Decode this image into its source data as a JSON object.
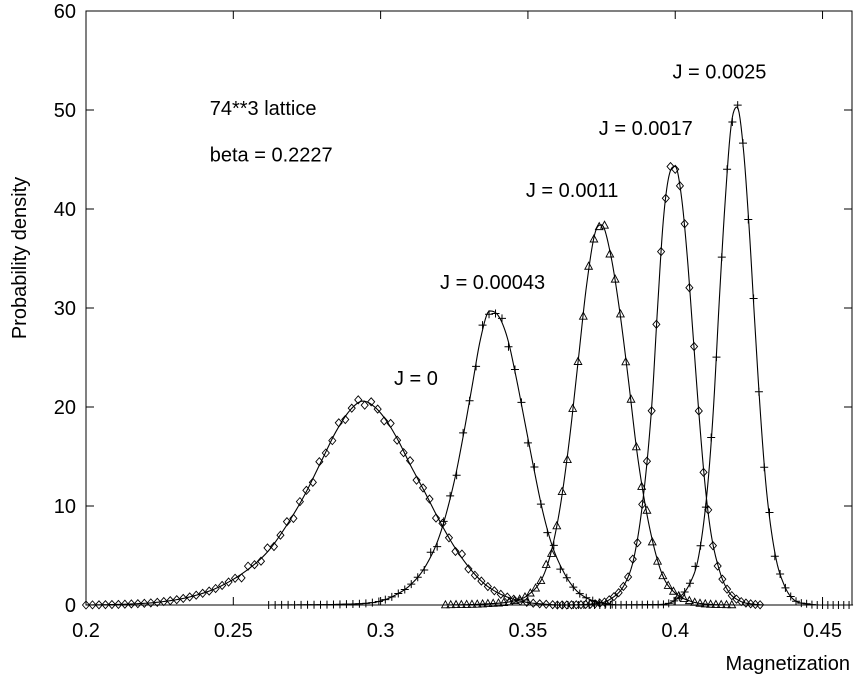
{
  "chart_data": {
    "type": "line",
    "xlabel": "Magnetization",
    "ylabel": "Probability density",
    "xlim": [
      0.2,
      0.46
    ],
    "ylim": [
      0,
      60
    ],
    "grid": false,
    "legend": "none",
    "x_ticks": [
      {
        "value": 0.2,
        "label": "0.2"
      },
      {
        "value": 0.25,
        "label": "0.25"
      },
      {
        "value": 0.3,
        "label": "0.3"
      },
      {
        "value": 0.35,
        "label": "0.35"
      },
      {
        "value": 0.4,
        "label": "0.4"
      },
      {
        "value": 0.45,
        "label": "0.45"
      }
    ],
    "y_ticks": [
      {
        "value": 0,
        "label": "0"
      },
      {
        "value": 10,
        "label": "10"
      },
      {
        "value": 20,
        "label": "20"
      },
      {
        "value": 30,
        "label": "30"
      },
      {
        "value": 40,
        "label": "40"
      },
      {
        "value": 50,
        "label": "50"
      },
      {
        "value": 60,
        "label": "60"
      }
    ],
    "annotations": [
      {
        "text": "74**3 lattice",
        "x": 0.242,
        "y": 49.5
      },
      {
        "text": "beta = 0.2227",
        "x": 0.242,
        "y": 44.8
      }
    ],
    "series": [
      {
        "label": "J = 0",
        "label_pos": [
          0.312,
          22.2
        ],
        "marker": "diamond",
        "xrange": [
          0.2,
          0.36
        ],
        "step": 0.0022,
        "points": [
          [
            0.2,
            0.0
          ],
          [
            0.215,
            0.1
          ],
          [
            0.225,
            0.3
          ],
          [
            0.235,
            0.8
          ],
          [
            0.245,
            1.8
          ],
          [
            0.255,
            3.6
          ],
          [
            0.262,
            5.5
          ],
          [
            0.268,
            8.0
          ],
          [
            0.274,
            11.0
          ],
          [
            0.28,
            14.6
          ],
          [
            0.285,
            17.6
          ],
          [
            0.29,
            19.8
          ],
          [
            0.294,
            20.6
          ],
          [
            0.298,
            20.0
          ],
          [
            0.302,
            18.6
          ],
          [
            0.306,
            16.6
          ],
          [
            0.31,
            14.2
          ],
          [
            0.315,
            11.4
          ],
          [
            0.32,
            8.5
          ],
          [
            0.325,
            5.9
          ],
          [
            0.33,
            3.8
          ],
          [
            0.335,
            2.2
          ],
          [
            0.34,
            1.2
          ],
          [
            0.345,
            0.6
          ],
          [
            0.35,
            0.25
          ],
          [
            0.355,
            0.1
          ],
          [
            0.36,
            0.0
          ]
        ]
      },
      {
        "label": "J = 0.00043",
        "label_pos": [
          0.338,
          31.9
        ],
        "marker": "plus",
        "xrange": [
          0.262,
          0.38
        ],
        "step": 0.0022,
        "points": [
          [
            0.262,
            0.0
          ],
          [
            0.29,
            0.1
          ],
          [
            0.3,
            0.4
          ],
          [
            0.305,
            1.0
          ],
          [
            0.31,
            2.0
          ],
          [
            0.315,
            3.8
          ],
          [
            0.32,
            7.0
          ],
          [
            0.325,
            12.5
          ],
          [
            0.328,
            17.0
          ],
          [
            0.331,
            22.0
          ],
          [
            0.334,
            27.0
          ],
          [
            0.337,
            29.7
          ],
          [
            0.34,
            29.2
          ],
          [
            0.343,
            27.0
          ],
          [
            0.346,
            23.0
          ],
          [
            0.349,
            18.4
          ],
          [
            0.352,
            13.8
          ],
          [
            0.355,
            9.5
          ],
          [
            0.358,
            6.2
          ],
          [
            0.362,
            3.4
          ],
          [
            0.366,
            1.6
          ],
          [
            0.37,
            0.7
          ],
          [
            0.375,
            0.2
          ],
          [
            0.38,
            0.0
          ]
        ]
      },
      {
        "label": "J = 0.0011",
        "label_pos": [
          0.365,
          41.2
        ],
        "marker": "triangle",
        "xrange": [
          0.322,
          0.42
        ],
        "step": 0.0018,
        "points": [
          [
            0.322,
            0.0
          ],
          [
            0.335,
            0.1
          ],
          [
            0.345,
            0.4
          ],
          [
            0.35,
            1.0
          ],
          [
            0.355,
            2.8
          ],
          [
            0.358,
            5.5
          ],
          [
            0.361,
            10.0
          ],
          [
            0.364,
            16.5
          ],
          [
            0.367,
            24.5
          ],
          [
            0.37,
            32.5
          ],
          [
            0.373,
            37.8
          ],
          [
            0.375,
            38.4
          ],
          [
            0.378,
            35.5
          ],
          [
            0.381,
            30.0
          ],
          [
            0.384,
            23.0
          ],
          [
            0.387,
            15.5
          ],
          [
            0.39,
            9.8
          ],
          [
            0.393,
            5.6
          ],
          [
            0.396,
            2.8
          ],
          [
            0.4,
            1.2
          ],
          [
            0.405,
            0.4
          ],
          [
            0.41,
            0.1
          ],
          [
            0.42,
            0.0
          ]
        ]
      },
      {
        "label": "J = 0.0017",
        "label_pos": [
          0.39,
          47.5
        ],
        "marker": "diamond",
        "xrange": [
          0.36,
          0.43
        ],
        "step": 0.0016,
        "points": [
          [
            0.36,
            0.0
          ],
          [
            0.372,
            0.1
          ],
          [
            0.378,
            0.6
          ],
          [
            0.383,
            2.2
          ],
          [
            0.386,
            4.8
          ],
          [
            0.389,
            10.5
          ],
          [
            0.392,
            20.0
          ],
          [
            0.394,
            30.0
          ],
          [
            0.396,
            39.0
          ],
          [
            0.398,
            43.5
          ],
          [
            0.4,
            44.3
          ],
          [
            0.402,
            41.5
          ],
          [
            0.404,
            35.5
          ],
          [
            0.406,
            27.5
          ],
          [
            0.408,
            19.5
          ],
          [
            0.41,
            12.5
          ],
          [
            0.412,
            7.5
          ],
          [
            0.415,
            3.5
          ],
          [
            0.418,
            1.4
          ],
          [
            0.422,
            0.4
          ],
          [
            0.426,
            0.1
          ],
          [
            0.43,
            0.0
          ]
        ]
      },
      {
        "label": "J = 0.0025",
        "label_pos": [
          0.415,
          53.2
        ],
        "marker": "plus",
        "xrange": [
          0.36,
          0.46
        ],
        "step": 0.0018,
        "points": [
          [
            0.36,
            0.0
          ],
          [
            0.395,
            0.05
          ],
          [
            0.4,
            0.5
          ],
          [
            0.405,
            2.2
          ],
          [
            0.408,
            5.0
          ],
          [
            0.411,
            12.0
          ],
          [
            0.413,
            20.0
          ],
          [
            0.415,
            31.0
          ],
          [
            0.417,
            41.0
          ],
          [
            0.419,
            48.5
          ],
          [
            0.421,
            50.3
          ],
          [
            0.423,
            46.5
          ],
          [
            0.425,
            38.5
          ],
          [
            0.427,
            28.5
          ],
          [
            0.429,
            19.0
          ],
          [
            0.431,
            11.5
          ],
          [
            0.434,
            5.0
          ],
          [
            0.437,
            2.0
          ],
          [
            0.44,
            0.6
          ],
          [
            0.445,
            0.1
          ],
          [
            0.45,
            0.0
          ],
          [
            0.46,
            0.0
          ]
        ]
      }
    ]
  }
}
